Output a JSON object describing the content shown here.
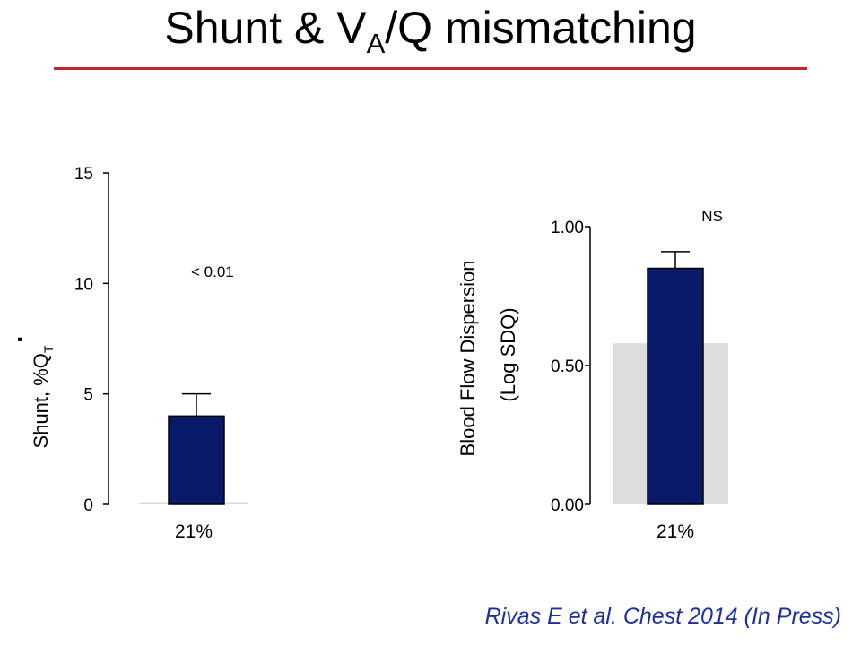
{
  "slide": {
    "title_main": "Shunt & V",
    "title_sub": "A",
    "title_end": "/Q mismatching",
    "citation": "Rivas E et al. Chest 2014 (In Press)",
    "accent_color": "#c0282d",
    "citation_color": "#1f2f9e"
  },
  "chart_data": [
    {
      "type": "bar",
      "categories": [
        "21%"
      ],
      "series": [
        {
          "values": [
            4.0
          ],
          "error_upper": [
            1.0
          ],
          "color": "#0a1a6b"
        }
      ],
      "reference_value": 0.1,
      "reference_color": "#dcdcdc",
      "ylim": [
        0,
        15
      ],
      "yticks": [
        0,
        5,
        10,
        15
      ],
      "ytick_labels": [
        "0",
        "5",
        "10",
        "15"
      ],
      "ylabel_prefix": "Shunt,  %Q",
      "ylabel_sub": "T",
      "ylabel_dot": "·",
      "annotation": "< 0.01"
    },
    {
      "type": "bar",
      "categories": [
        "21%"
      ],
      "series": [
        {
          "values": [
            0.85
          ],
          "error_upper": [
            0.06
          ],
          "color": "#0a1a6b"
        }
      ],
      "reference_value": 0.58,
      "reference_color": "#dcdcdc",
      "ylim": [
        0,
        1.0
      ],
      "yticks": [
        0,
        0.5,
        1.0
      ],
      "ytick_labels": [
        "0.00",
        "0.50",
        "1.00"
      ],
      "ylabel_line1": "Blood Flow Dispersion",
      "ylabel_line2": "(Log SDQ)",
      "annotation": "NS"
    }
  ]
}
